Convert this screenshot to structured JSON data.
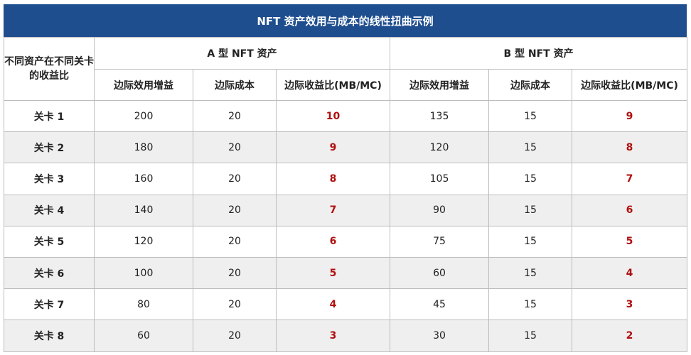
{
  "title": "NFT 资产效用与成本的线性扭曲示例",
  "corner_header": "不同资产在不同关卡的收益比",
  "group_headers": [
    "A 型 NFT 资产",
    "B 型 NFT 资产"
  ],
  "sub_headers": [
    "边际效用增益",
    "边际成本",
    "边际收益比(MB/MC)",
    "边际效用增益",
    "边际成本",
    "边际收益比(MB/MC)"
  ],
  "accent_color": "#b00e0e",
  "header_color": "#1f4e8f",
  "rows": [
    {
      "level": "关卡 1",
      "a_gain": "200",
      "a_cost": "20",
      "a_ratio": "10",
      "b_gain": "135",
      "b_cost": "15",
      "b_ratio": "9"
    },
    {
      "level": "关卡 2",
      "a_gain": "180",
      "a_cost": "20",
      "a_ratio": "9",
      "b_gain": "120",
      "b_cost": "15",
      "b_ratio": "8"
    },
    {
      "level": "关卡 3",
      "a_gain": "160",
      "a_cost": "20",
      "a_ratio": "8",
      "b_gain": "105",
      "b_cost": "15",
      "b_ratio": "7"
    },
    {
      "level": "关卡 4",
      "a_gain": "140",
      "a_cost": "20",
      "a_ratio": "7",
      "b_gain": "90",
      "b_cost": "15",
      "b_ratio": "6"
    },
    {
      "level": "关卡 5",
      "a_gain": "120",
      "a_cost": "20",
      "a_ratio": "6",
      "b_gain": "75",
      "b_cost": "15",
      "b_ratio": "5"
    },
    {
      "level": "关卡 6",
      "a_gain": "100",
      "a_cost": "20",
      "a_ratio": "5",
      "b_gain": "60",
      "b_cost": "15",
      "b_ratio": "4"
    },
    {
      "level": "关卡 7",
      "a_gain": "80",
      "a_cost": "20",
      "a_ratio": "4",
      "b_gain": "45",
      "b_cost": "15",
      "b_ratio": "3"
    },
    {
      "level": "关卡 8",
      "a_gain": "60",
      "a_cost": "20",
      "a_ratio": "3",
      "b_gain": "30",
      "b_cost": "15",
      "b_ratio": "2"
    }
  ]
}
